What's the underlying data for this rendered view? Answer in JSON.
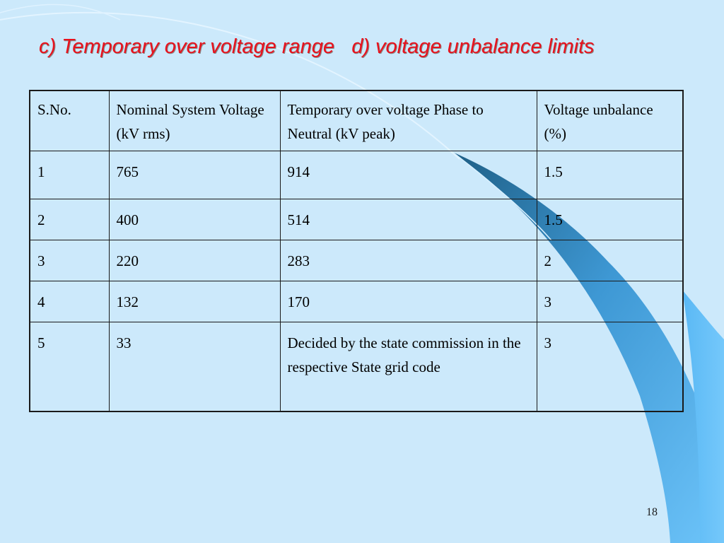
{
  "slide": {
    "title": "c) Temporary over voltage range   d) voltage unbalance limits",
    "page_number": "18"
  },
  "table": {
    "headers": [
      "S.No.",
      "Nominal System Voltage (kV rms)",
      "Temporary over voltage Phase to Neutral (kV peak)",
      "Voltage unbalance (%)"
    ],
    "rows": [
      [
        "1",
        "765",
        "914",
        "1.5"
      ],
      [
        "2",
        "400",
        "514",
        "1.5"
      ],
      [
        "3",
        "220",
        "283",
        "2"
      ],
      [
        "4",
        "132",
        "170",
        "3"
      ],
      [
        "5",
        "33",
        "Decided by the state commission in the respective State grid code",
        "3"
      ]
    ]
  },
  "colors": {
    "background": "#cce9fb",
    "title": "#e8121d",
    "swoosh_dark": "#1e5f86",
    "swoosh_mid": "#4aa6e0",
    "swoosh_light": "#6dc4fa"
  }
}
